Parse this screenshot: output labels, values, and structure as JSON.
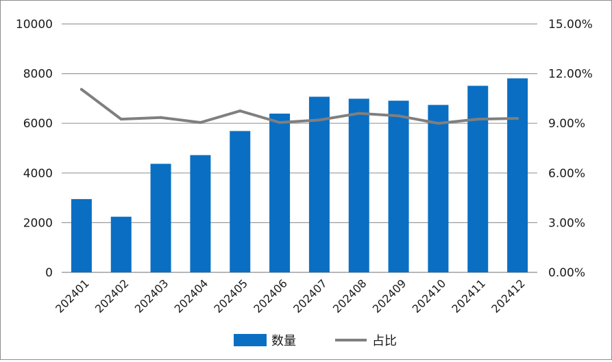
{
  "chart_data": {
    "type": "bar",
    "categories": [
      "202401",
      "202402",
      "202403",
      "202404",
      "202405",
      "202406",
      "202407",
      "202408",
      "202409",
      "202410",
      "202411",
      "202412"
    ],
    "series": [
      {
        "name": "数量",
        "type": "bar",
        "axis": "left",
        "color": "#0a6fc2",
        "values": [
          2950,
          2240,
          4370,
          4720,
          5690,
          6390,
          7070,
          6990,
          6910,
          6740,
          7510,
          7810
        ]
      },
      {
        "name": "占比",
        "type": "line",
        "axis": "right",
        "color": "#7f7f7f",
        "values": [
          11.05,
          9.25,
          9.35,
          9.05,
          9.75,
          9.05,
          9.2,
          9.6,
          9.45,
          9.0,
          9.25,
          9.3
        ]
      }
    ],
    "y_left": {
      "range": [
        0,
        10000
      ],
      "ticks": [
        0,
        2000,
        4000,
        6000,
        8000,
        10000
      ],
      "tick_labels": [
        "0",
        "2000",
        "4000",
        "6000",
        "8000",
        "10000"
      ]
    },
    "y_right": {
      "range": [
        0,
        15
      ],
      "ticks": [
        0,
        3,
        6,
        9,
        12,
        15
      ],
      "tick_labels": [
        "0.00%",
        "3.00%",
        "6.00%",
        "9.00%",
        "12.00%",
        "15.00%"
      ]
    },
    "grid": true,
    "legend_position": "bottom"
  }
}
